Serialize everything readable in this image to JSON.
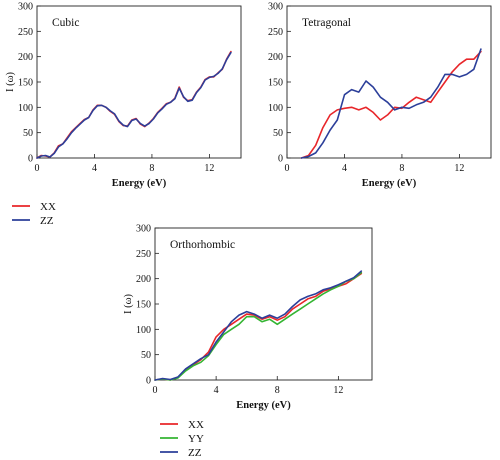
{
  "figure": {
    "legend_top": [
      {
        "label": "XX",
        "color": "#e8262a"
      },
      {
        "label": "ZZ",
        "color": "#2c3f9a"
      }
    ],
    "legend_bottom": [
      {
        "label": "XX",
        "color": "#e8262a"
      },
      {
        "label": "YY",
        "color": "#35b533"
      },
      {
        "label": "ZZ",
        "color": "#2c3f9a"
      }
    ]
  },
  "chart_data": [
    {
      "type": "line",
      "panel_label": "Cubic",
      "xlabel": "Energy (eV)",
      "ylabel": "I (ω)",
      "xlim": [
        0,
        14.2
      ],
      "ylim": [
        0,
        300
      ],
      "xticks": [
        0,
        4,
        8,
        12
      ],
      "yticks": [
        0,
        50,
        100,
        150,
        200,
        250,
        300
      ],
      "series": [
        {
          "name": "XX",
          "color": "#e8262a",
          "x": [
            0,
            0.3,
            0.6,
            0.9,
            1.2,
            1.5,
            1.8,
            2.1,
            2.4,
            2.7,
            3.0,
            3.3,
            3.6,
            3.9,
            4.2,
            4.5,
            4.8,
            5.1,
            5.4,
            5.7,
            6.0,
            6.3,
            6.6,
            6.9,
            7.2,
            7.5,
            7.8,
            8.1,
            8.4,
            8.7,
            9.0,
            9.3,
            9.6,
            9.9,
            10.2,
            10.5,
            10.8,
            11.1,
            11.4,
            11.7,
            12.0,
            12.3,
            12.6,
            12.9,
            13.2,
            13.5
          ],
          "y": [
            0,
            5,
            4,
            2,
            10,
            24,
            28,
            40,
            52,
            60,
            68,
            76,
            80,
            95,
            104,
            104,
            100,
            92,
            86,
            72,
            64,
            63,
            75,
            78,
            67,
            62,
            69,
            78,
            90,
            98,
            107,
            110,
            118,
            140,
            120,
            113,
            115,
            130,
            140,
            155,
            160,
            160,
            168,
            175,
            195,
            210
          ]
        },
        {
          "name": "ZZ",
          "color": "#2c3f9a",
          "x": [
            0,
            0.3,
            0.6,
            0.9,
            1.2,
            1.5,
            1.8,
            2.1,
            2.4,
            2.7,
            3.0,
            3.3,
            3.6,
            3.9,
            4.2,
            4.5,
            4.8,
            5.1,
            5.4,
            5.7,
            6.0,
            6.3,
            6.6,
            6.9,
            7.2,
            7.5,
            7.8,
            8.1,
            8.4,
            8.7,
            9.0,
            9.3,
            9.6,
            9.9,
            10.2,
            10.5,
            10.8,
            11.1,
            11.4,
            11.7,
            12.0,
            12.3,
            12.6,
            12.9,
            13.2,
            13.5
          ],
          "y": [
            0,
            4,
            5,
            2,
            9,
            22,
            28,
            38,
            50,
            59,
            67,
            75,
            80,
            94,
            103,
            104,
            100,
            93,
            87,
            73,
            65,
            62,
            74,
            77,
            68,
            63,
            68,
            77,
            89,
            97,
            106,
            110,
            117,
            138,
            121,
            112,
            114,
            129,
            139,
            154,
            159,
            161,
            167,
            176,
            194,
            208
          ]
        }
      ]
    },
    {
      "type": "line",
      "panel_label": "Tetragonal",
      "xlabel": "Energy (eV)",
      "ylabel": "",
      "xlim": [
        0,
        14.2
      ],
      "ylim": [
        0,
        300
      ],
      "xticks": [
        0,
        4,
        8,
        12
      ],
      "yticks": [
        0,
        50,
        100,
        150,
        200,
        250,
        300
      ],
      "series": [
        {
          "name": "XX",
          "color": "#e8262a",
          "x": [
            1.0,
            1.5,
            2.0,
            2.5,
            3.0,
            3.5,
            4.0,
            4.5,
            5.0,
            5.5,
            6.0,
            6.5,
            7.0,
            7.5,
            8.0,
            8.5,
            9.0,
            9.5,
            10.0,
            10.5,
            11.0,
            11.5,
            12.0,
            12.5,
            13.0,
            13.5
          ],
          "y": [
            0,
            5,
            25,
            60,
            85,
            95,
            98,
            100,
            95,
            100,
            90,
            75,
            85,
            100,
            98,
            110,
            120,
            115,
            110,
            130,
            150,
            170,
            185,
            195,
            195,
            210
          ]
        },
        {
          "name": "ZZ",
          "color": "#2c3f9a",
          "x": [
            1.0,
            1.5,
            2.0,
            2.5,
            3.0,
            3.5,
            4.0,
            4.5,
            5.0,
            5.5,
            6.0,
            6.5,
            7.0,
            7.5,
            8.0,
            8.5,
            9.0,
            9.5,
            10.0,
            10.5,
            11.0,
            11.5,
            12.0,
            12.5,
            13.0,
            13.5
          ],
          "y": [
            0,
            3,
            10,
            30,
            55,
            75,
            125,
            135,
            130,
            152,
            140,
            120,
            110,
            95,
            100,
            98,
            105,
            110,
            120,
            140,
            165,
            165,
            160,
            165,
            175,
            215
          ]
        }
      ]
    },
    {
      "type": "line",
      "panel_label": "Orthorhombic",
      "xlabel": "Energy (eV)",
      "ylabel": "I (ω)",
      "xlim": [
        0,
        14.2
      ],
      "ylim": [
        0,
        300
      ],
      "xticks": [
        0,
        4,
        8,
        12
      ],
      "yticks": [
        0,
        50,
        100,
        150,
        200,
        250,
        300
      ],
      "series": [
        {
          "name": "XX",
          "color": "#e8262a",
          "x": [
            0,
            0.5,
            1.0,
            1.5,
            2.0,
            2.5,
            3.0,
            3.5,
            4.0,
            4.5,
            5.0,
            5.5,
            6.0,
            6.5,
            7.0,
            7.5,
            8.0,
            8.5,
            9.0,
            9.5,
            10.0,
            10.5,
            11.0,
            11.5,
            12.0,
            12.5,
            13.0,
            13.5
          ],
          "y": [
            0,
            2,
            0,
            5,
            20,
            30,
            40,
            55,
            85,
            100,
            110,
            120,
            130,
            128,
            120,
            125,
            118,
            125,
            140,
            150,
            160,
            165,
            175,
            180,
            185,
            190,
            200,
            210
          ]
        },
        {
          "name": "YY",
          "color": "#35b533",
          "x": [
            0,
            0.5,
            1.0,
            1.5,
            2.0,
            2.5,
            3.0,
            3.5,
            4.0,
            4.5,
            5.0,
            5.5,
            6.0,
            6.5,
            7.0,
            7.5,
            8.0,
            8.5,
            9.0,
            9.5,
            10.0,
            10.5,
            11.0,
            11.5,
            12.0,
            12.5,
            13.0,
            13.5
          ],
          "y": [
            0,
            2,
            0,
            4,
            18,
            28,
            35,
            48,
            70,
            90,
            100,
            110,
            125,
            125,
            115,
            120,
            110,
            120,
            130,
            140,
            150,
            160,
            170,
            178,
            185,
            195,
            200,
            212
          ]
        },
        {
          "name": "ZZ",
          "color": "#2c3f9a",
          "x": [
            0,
            0.5,
            1.0,
            1.5,
            2.0,
            2.5,
            3.0,
            3.5,
            4.0,
            4.5,
            5.0,
            5.5,
            6.0,
            6.5,
            7.0,
            7.5,
            8.0,
            8.5,
            9.0,
            9.5,
            10.0,
            10.5,
            11.0,
            11.5,
            12.0,
            12.5,
            13.0,
            13.5
          ],
          "y": [
            0,
            3,
            1,
            6,
            22,
            32,
            42,
            50,
            75,
            95,
            115,
            128,
            135,
            130,
            122,
            128,
            122,
            130,
            145,
            158,
            165,
            170,
            178,
            182,
            188,
            195,
            202,
            215
          ]
        }
      ]
    }
  ]
}
